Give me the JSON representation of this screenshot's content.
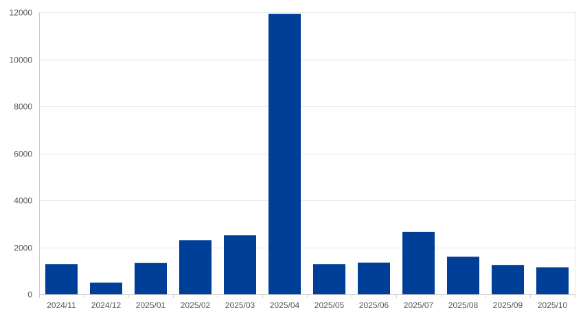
{
  "colors": {
    "bar": "#003f98",
    "grid": "#e6e6e6",
    "axis": "#cccccc",
    "tick_text": "#555555"
  },
  "chart_data": {
    "type": "bar",
    "categories": [
      "2024/11",
      "2024/12",
      "2025/01",
      "2025/02",
      "2025/03",
      "2025/04",
      "2025/05",
      "2025/06",
      "2025/07",
      "2025/08",
      "2025/09",
      "2025/10"
    ],
    "values": [
      1280,
      500,
      1340,
      2300,
      2510,
      11940,
      1280,
      1350,
      2660,
      1600,
      1250,
      1150
    ],
    "y_ticks": [
      0,
      2000,
      4000,
      6000,
      8000,
      10000,
      12000
    ],
    "ylim": [
      0,
      12000
    ],
    "grid": true,
    "legend": "none"
  }
}
